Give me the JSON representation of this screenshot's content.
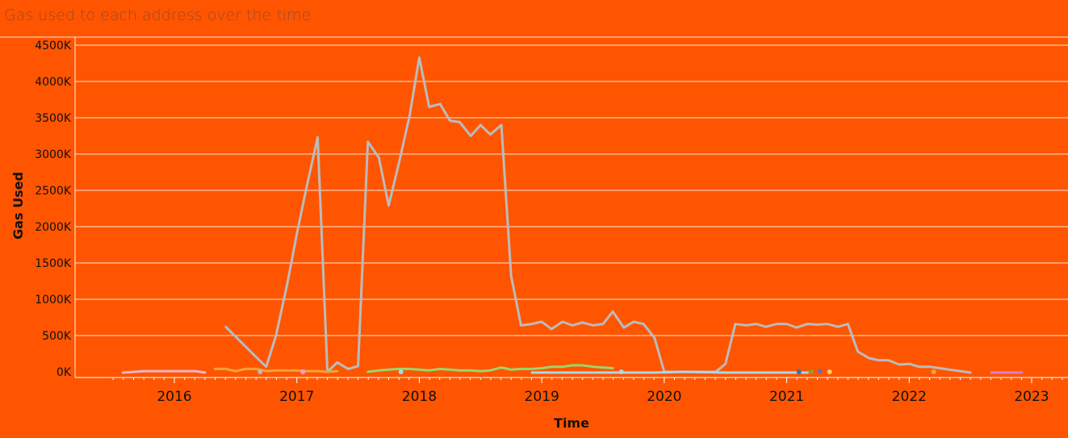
{
  "chart_data": {
    "type": "line",
    "title": "Gas used to each address over the time",
    "xlabel": "Time",
    "ylabel": "Gas Used",
    "xlim": [
      2015.25,
      2023.25
    ],
    "ylim": [
      -100,
      4600
    ],
    "x_ticks": [
      {
        "value": 2016,
        "label": "2016"
      },
      {
        "value": 2017,
        "label": "2017"
      },
      {
        "value": 2018,
        "label": "2018"
      },
      {
        "value": 2019,
        "label": "2019"
      },
      {
        "value": 2020,
        "label": "2020"
      },
      {
        "value": 2021,
        "label": "2021"
      },
      {
        "value": 2022,
        "label": "2022"
      },
      {
        "value": 2023,
        "label": "2023"
      }
    ],
    "y_ticks": [
      {
        "value": 0,
        "label": "0K"
      },
      {
        "value": 500,
        "label": "500K"
      },
      {
        "value": 1000,
        "label": "1000K"
      },
      {
        "value": 1500,
        "label": "1500K"
      },
      {
        "value": 2000,
        "label": "2000K"
      },
      {
        "value": 2500,
        "label": "2500K"
      },
      {
        "value": 3000,
        "label": "3000K"
      },
      {
        "value": 3500,
        "label": "3500K"
      },
      {
        "value": 4000,
        "label": "4000K"
      },
      {
        "value": 4500,
        "label": "4500K"
      }
    ],
    "grid": true,
    "legend": "none",
    "series": [
      {
        "color": "#bbbbbb",
        "points": [
          [
            2016.42,
            620
          ],
          [
            2016.67,
            200
          ],
          [
            2016.75,
            70
          ],
          [
            2016.83,
            500
          ],
          [
            2016.92,
            1200
          ],
          [
            2017.0,
            1900
          ],
          [
            2017.08,
            2550
          ],
          [
            2017.17,
            3230
          ],
          [
            2017.25,
            0
          ],
          [
            2017.33,
            130
          ],
          [
            2017.42,
            40
          ],
          [
            2017.5,
            80
          ],
          [
            2017.58,
            3170
          ],
          [
            2017.67,
            2950
          ],
          [
            2017.75,
            2290
          ],
          [
            2017.83,
            2850
          ],
          [
            2017.92,
            3520
          ],
          [
            2018.0,
            4330
          ],
          [
            2018.08,
            3650
          ],
          [
            2018.17,
            3690
          ],
          [
            2018.25,
            3460
          ],
          [
            2018.33,
            3440
          ],
          [
            2018.42,
            3250
          ],
          [
            2018.5,
            3400
          ],
          [
            2018.58,
            3270
          ],
          [
            2018.67,
            3400
          ],
          [
            2018.75,
            1320
          ],
          [
            2018.83,
            640
          ],
          [
            2018.92,
            660
          ],
          [
            2019.0,
            690
          ],
          [
            2019.08,
            590
          ],
          [
            2019.17,
            690
          ],
          [
            2019.25,
            640
          ],
          [
            2019.33,
            680
          ],
          [
            2019.42,
            640
          ],
          [
            2019.5,
            660
          ],
          [
            2019.58,
            830
          ],
          [
            2019.67,
            610
          ],
          [
            2019.75,
            690
          ],
          [
            2019.83,
            660
          ],
          [
            2019.92,
            470
          ],
          [
            2020.0,
            0
          ],
          [
            2020.08,
            0
          ],
          [
            2020.17,
            0
          ],
          [
            2020.25,
            0
          ],
          [
            2020.33,
            0
          ],
          [
            2020.42,
            0
          ],
          [
            2020.5,
            110
          ],
          [
            2020.58,
            660
          ],
          [
            2020.67,
            640
          ],
          [
            2020.75,
            660
          ],
          [
            2020.83,
            620
          ],
          [
            2020.92,
            660
          ],
          [
            2021.0,
            660
          ],
          [
            2021.08,
            610
          ],
          [
            2021.17,
            660
          ],
          [
            2021.25,
            650
          ],
          [
            2021.33,
            660
          ],
          [
            2021.42,
            620
          ],
          [
            2021.5,
            660
          ],
          [
            2021.58,
            280
          ],
          [
            2021.67,
            190
          ],
          [
            2021.75,
            160
          ],
          [
            2021.83,
            160
          ],
          [
            2021.92,
            100
          ],
          [
            2022.0,
            110
          ],
          [
            2022.08,
            70
          ],
          [
            2022.17,
            70
          ],
          [
            2022.25,
            50
          ],
          [
            2022.33,
            30
          ],
          [
            2022.42,
            10
          ],
          [
            2022.5,
            -10
          ]
        ]
      },
      {
        "color": "#9ad66a",
        "points": [
          [
            2017.58,
            0
          ],
          [
            2017.67,
            20
          ],
          [
            2017.75,
            30
          ],
          [
            2017.83,
            40
          ],
          [
            2017.92,
            40
          ],
          [
            2018.0,
            30
          ],
          [
            2018.08,
            20
          ],
          [
            2018.17,
            40
          ],
          [
            2018.25,
            30
          ],
          [
            2018.33,
            20
          ],
          [
            2018.42,
            20
          ],
          [
            2018.5,
            10
          ],
          [
            2018.58,
            20
          ],
          [
            2018.67,
            60
          ],
          [
            2018.75,
            30
          ],
          [
            2018.83,
            40
          ],
          [
            2018.92,
            40
          ],
          [
            2019.0,
            50
          ],
          [
            2019.08,
            70
          ],
          [
            2019.17,
            70
          ],
          [
            2019.25,
            90
          ],
          [
            2019.33,
            90
          ],
          [
            2019.42,
            70
          ],
          [
            2019.5,
            60
          ],
          [
            2019.58,
            50
          ]
        ]
      },
      {
        "color": "#f2a23a",
        "points": [
          [
            2016.33,
            40
          ],
          [
            2016.42,
            40
          ],
          [
            2016.5,
            10
          ],
          [
            2016.58,
            40
          ],
          [
            2016.67,
            40
          ],
          [
            2016.75,
            10
          ],
          [
            2016.83,
            20
          ],
          [
            2016.92,
            20
          ],
          [
            2017.0,
            20
          ],
          [
            2017.08,
            10
          ],
          [
            2017.17,
            10
          ],
          [
            2017.25,
            0
          ],
          [
            2017.33,
            10
          ]
        ]
      },
      {
        "color": "#f4b4c8",
        "points": [
          [
            2015.58,
            -10
          ],
          [
            2015.67,
            0
          ],
          [
            2015.75,
            10
          ],
          [
            2015.83,
            10
          ],
          [
            2015.92,
            10
          ],
          [
            2016.0,
            10
          ],
          [
            2016.08,
            10
          ],
          [
            2016.17,
            10
          ],
          [
            2016.25,
            -10
          ]
        ]
      },
      {
        "color": "#a8d8ea",
        "points": [
          [
            2018.92,
            -10
          ],
          [
            2019.25,
            -10
          ],
          [
            2019.58,
            -10
          ],
          [
            2019.92,
            -10
          ],
          [
            2020.17,
            0
          ],
          [
            2020.5,
            -10
          ],
          [
            2020.83,
            -10
          ],
          [
            2021.0,
            -10
          ],
          [
            2021.17,
            -10
          ]
        ]
      },
      {
        "color": "#d77fd2",
        "points": [
          [
            2022.67,
            -10
          ],
          [
            2022.75,
            -10
          ],
          [
            2022.83,
            -10
          ],
          [
            2022.92,
            -10
          ]
        ]
      }
    ],
    "markers": [
      {
        "x": 2016.7,
        "y": 0,
        "color": "#bbbbbb"
      },
      {
        "x": 2017.05,
        "y": 0,
        "color": "#e6a0d8"
      },
      {
        "x": 2017.85,
        "y": 0,
        "color": "#a8d8ea"
      },
      {
        "x": 2019.65,
        "y": 0,
        "color": "#a8d8ea"
      },
      {
        "x": 2021.1,
        "y": 0,
        "color": "#3a6fb0"
      },
      {
        "x": 2021.2,
        "y": 0,
        "color": "#8aa030"
      },
      {
        "x": 2021.27,
        "y": 10,
        "color": "#7a6aa0"
      },
      {
        "x": 2021.35,
        "y": 0,
        "color": "#f0d060"
      },
      {
        "x": 2022.2,
        "y": 0,
        "color": "#f2a23a"
      }
    ]
  }
}
